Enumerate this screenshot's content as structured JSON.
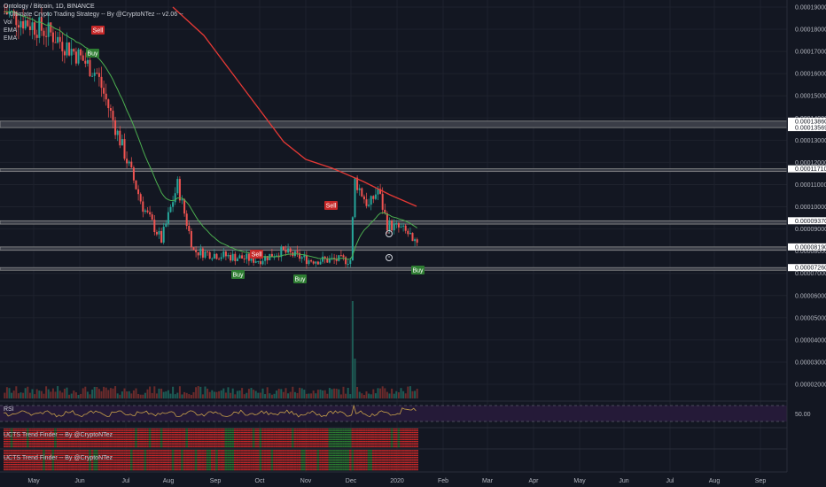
{
  "legend": {
    "symbol_line": "Ontology / Bitcoin, 1D, BINANCE",
    "strategy_line": "-- Ultimate Crypto Trading Strategy -- By @CryptoNTez -- v2.06 --",
    "vol": "Vol",
    "ema1": "EMA",
    "ema2": "EMA"
  },
  "panes": {
    "rsi_label": "RSI",
    "rsi_level": "50.00",
    "trend1_label": "UCTS Trend Finder -- By @CryptoNTez",
    "trend2_label": "UCTS Trend Finder -- By @CryptoNTez"
  },
  "price_axis": {
    "ticks": [
      "0.00019000",
      "0.00018000",
      "0.00017000",
      "0.00016000",
      "0.00015000",
      "0.00014000",
      "0.00013000",
      "0.00012000",
      "0.00011000",
      "0.00010000",
      "0.00009000",
      "0.00008000",
      "0.00007000",
      "0.00006000",
      "0.00005000",
      "0.00004000",
      "0.00003000",
      "0.00002000"
    ],
    "levels": [
      "0.00013860",
      "0.00013569",
      "0.00011710",
      "0.00009370",
      "0.00008190",
      "0.00007260"
    ]
  },
  "time_axis": [
    "May",
    "Jun",
    "Jul",
    "Aug",
    "Sep",
    "Oct",
    "Nov",
    "Dec",
    "2020",
    "Feb",
    "Mar",
    "Apr",
    "May",
    "Jun",
    "Jul",
    "Aug",
    "Sep"
  ],
  "signals": [
    {
      "label": "Sell",
      "type": "sell"
    },
    {
      "label": "Buy",
      "type": "buy"
    },
    {
      "label": "Buy",
      "type": "buy"
    },
    {
      "label": "Sell",
      "type": "sell"
    },
    {
      "label": "Buy",
      "type": "buy"
    },
    {
      "label": "Sell",
      "type": "sell"
    },
    {
      "label": "Buy",
      "type": "buy"
    }
  ],
  "colors": {
    "background": "#131722",
    "up": "#26a69a",
    "down": "#ef5350",
    "ema_fast": "#4caf50",
    "ema_slow": "#e53935",
    "level_line": "#9e9e9e",
    "rsi_bg": "#2a1a3e",
    "rsi_line": "#c8a14a",
    "trend_red": "#c62828",
    "trend_green": "#2e7d32"
  }
}
